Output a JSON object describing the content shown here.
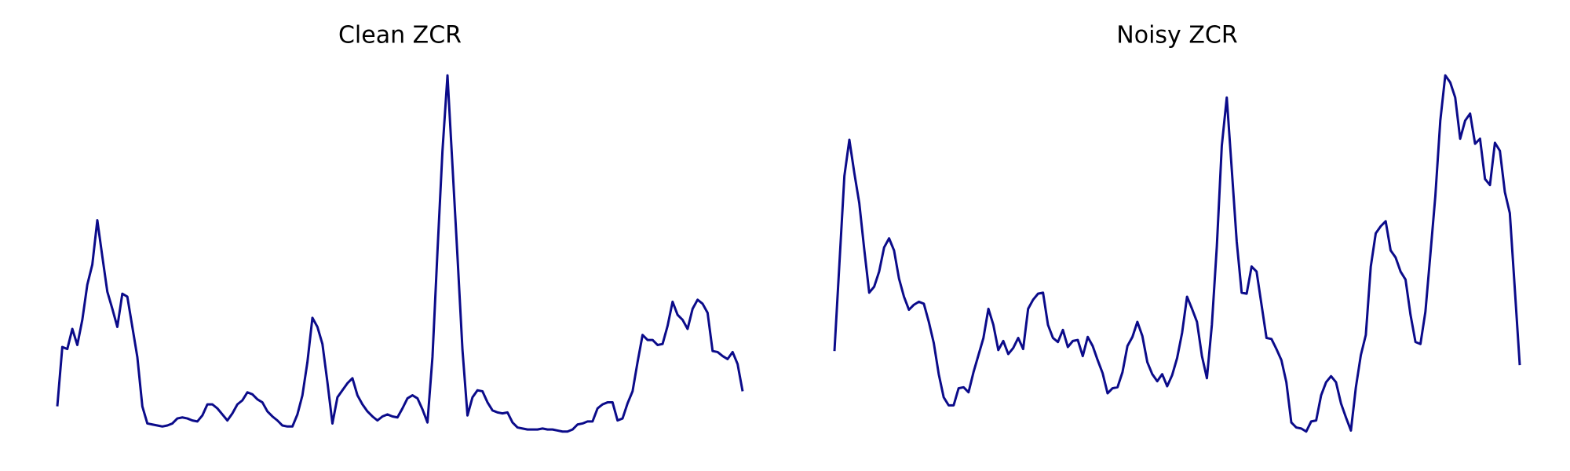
{
  "chart_data": [
    {
      "type": "line",
      "title": "Clean ZCR",
      "color": "#0b0b8a",
      "ylim": [
        0,
        355
      ],
      "values": [
        26,
        85,
        83,
        103,
        87,
        112,
        147,
        167,
        211,
        175,
        140,
        123,
        105,
        138,
        135,
        105,
        75,
        26,
        9,
        8,
        7,
        6,
        7,
        9,
        14,
        15,
        14,
        12,
        11,
        17,
        28,
        28,
        24,
        18,
        12,
        19,
        28,
        32,
        40,
        38,
        33,
        30,
        21,
        16,
        12,
        7,
        6,
        6,
        18,
        37,
        70,
        114,
        105,
        88,
        50,
        9,
        35,
        42,
        49,
        54,
        37,
        28,
        21,
        16,
        12,
        16,
        18,
        16,
        15,
        24,
        34,
        37,
        34,
        23,
        10,
        75,
        180,
        280,
        355,
        265,
        175,
        82,
        17,
        35,
        42,
        41,
        30,
        22,
        20,
        19,
        20,
        10,
        5,
        4,
        3,
        3,
        3,
        4,
        3,
        3,
        2,
        1,
        1,
        3,
        8,
        9,
        11,
        11,
        24,
        28,
        30,
        30,
        12,
        14,
        29,
        41,
        70,
        97,
        92,
        92,
        87,
        88,
        106,
        130,
        117,
        112,
        103,
        123,
        132,
        128,
        119,
        81,
        80,
        76,
        73,
        80,
        68,
        41
      ]
    },
    {
      "type": "line",
      "title": "Noisy ZCR",
      "color": "#0b0b8a",
      "ylim": [
        0,
        355
      ],
      "values": [
        81,
        168,
        255,
        291,
        258,
        228,
        182,
        139,
        145,
        160,
        184,
        193,
        181,
        153,
        135,
        122,
        127,
        130,
        128,
        110,
        89,
        58,
        35,
        27,
        27,
        44,
        45,
        40,
        60,
        77,
        94,
        123,
        107,
        82,
        91,
        78,
        84,
        94,
        83,
        123,
        132,
        138,
        139,
        107,
        94,
        90,
        102,
        85,
        91,
        92,
        76,
        95,
        86,
        72,
        59,
        39,
        44,
        45,
        60,
        86,
        95,
        110,
        96,
        70,
        58,
        51,
        58,
        46,
        57,
        74,
        99,
        135,
        123,
        110,
        76,
        54,
        107,
        185,
        285,
        333,
        262,
        190,
        139,
        138,
        165,
        160,
        127,
        94,
        93,
        83,
        72,
        50,
        10,
        5,
        4,
        1,
        11,
        12,
        37,
        50,
        56,
        50,
        29,
        15,
        2,
        45,
        77,
        97,
        165,
        198,
        205,
        210,
        181,
        174,
        160,
        152,
        117,
        90,
        88,
        120,
        177,
        235,
        310,
        355,
        348,
        333,
        292,
        310,
        317,
        287,
        292,
        252,
        246,
        288,
        280,
        239,
        218,
        143,
        67
      ]
    }
  ]
}
